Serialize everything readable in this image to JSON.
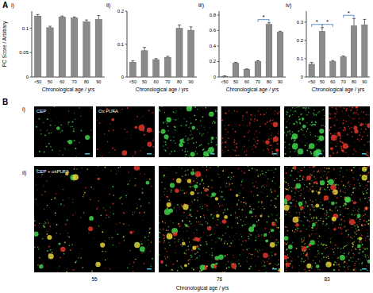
{
  "chart_data": [
    {
      "type": "bar",
      "title": "i)",
      "ylabel": "PC Score / Arbitrary",
      "xlabel": "Chronological age / yrs",
      "categories": [
        "<50",
        "50",
        "60",
        "70",
        "80",
        "90"
      ],
      "values": [
        0.125,
        0.101,
        0.123,
        0.121,
        0.113,
        0.118
      ],
      "errors": [
        0.003,
        0.003,
        0.002,
        0.002,
        0.004,
        0.008
      ],
      "color": "#8a8a8a",
      "ylim": [
        0,
        0.135
      ],
      "yticks": [
        0,
        0.05,
        0.1
      ],
      "annotations": []
    },
    {
      "type": "bar",
      "title": "ii)",
      "xlabel": "Chronological age / yrs",
      "categories": [
        "<50",
        "50",
        "60",
        "70",
        "80",
        "90"
      ],
      "values": [
        0.045,
        0.08,
        0.053,
        0.06,
        0.148,
        0.142
      ],
      "errors": [
        0.004,
        0.01,
        0.003,
        0.003,
        0.01,
        0.01
      ],
      "color": "#8a8a8a",
      "ylim": [
        0,
        0.2
      ],
      "yticks": [
        0,
        0.1,
        0.2
      ],
      "annotations": []
    },
    {
      "type": "bar",
      "title": "iii)",
      "xlabel": "Chronological age / yrs",
      "categories": [
        "<50",
        "50",
        "60",
        "70",
        "80",
        "90"
      ],
      "values": [
        0.01,
        0.18,
        0.1,
        0.2,
        0.68,
        0.58
      ],
      "errors": [
        0.005,
        0.01,
        0.005,
        0.01,
        0.02,
        0.01
      ],
      "color": "#8a8a8a",
      "ylim": [
        0,
        0.85
      ],
      "yticks": [
        0,
        0.2,
        0.4,
        0.6,
        0.8
      ],
      "annotations": [
        {
          "between": [
            "70",
            "80"
          ],
          "label": "*"
        }
      ]
    },
    {
      "type": "bar",
      "title": "iv)",
      "xlabel": "Chronological age / yrs",
      "categories": [
        "<50",
        "50",
        "60",
        "70",
        "80",
        "90"
      ],
      "values": [
        0.07,
        0.25,
        0.085,
        0.11,
        0.28,
        0.285
      ],
      "errors": [
        0.01,
        0.02,
        0.005,
        0.005,
        0.04,
        0.03
      ],
      "color": "#8a8a8a",
      "ylim": [
        0,
        0.36
      ],
      "yticks": [
        0,
        0.1,
        0.2,
        0.3
      ],
      "annotations": [
        {
          "between": [
            "<50",
            "50"
          ],
          "label": "*"
        },
        {
          "between": [
            "50",
            "60"
          ],
          "label": "*"
        },
        {
          "between": [
            "70",
            "80"
          ],
          "label": "*"
        }
      ]
    }
  ],
  "figure": {
    "panel_a": "A",
    "panel_b": "B",
    "row_labels": [
      "i)",
      "ii)"
    ],
    "channel_labels": [
      "CEP",
      "Ox PUFA"
    ],
    "merge_label": "CEP + oxPUFA",
    "ages": [
      55,
      76,
      83
    ],
    "xlabel": "Chronological age / yrs"
  }
}
